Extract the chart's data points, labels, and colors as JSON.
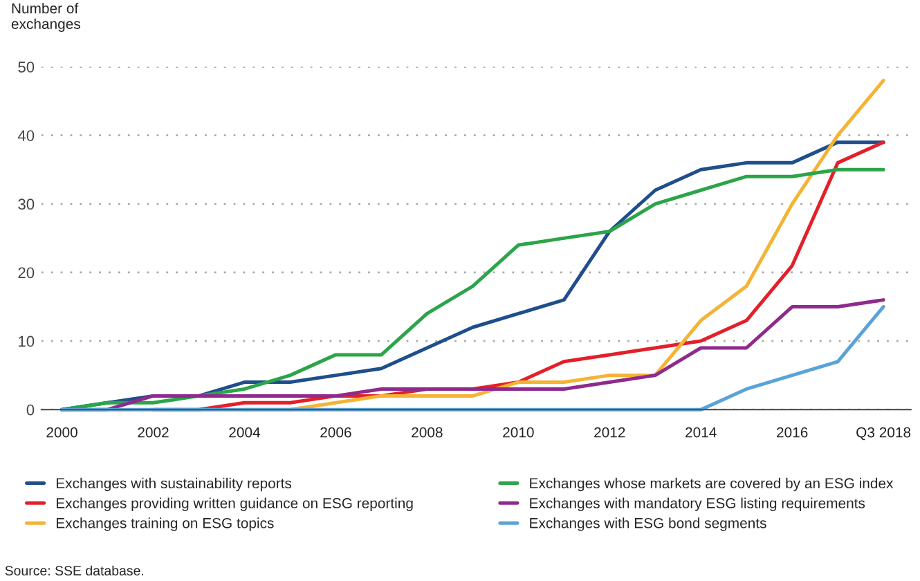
{
  "chart_data": {
    "type": "line",
    "ylabel": "Number of exchanges",
    "x": [
      2000,
      2001,
      2002,
      2003,
      2004,
      2005,
      2006,
      2007,
      2008,
      2009,
      2010,
      2011,
      2012,
      2013,
      2014,
      2015,
      2016,
      2017,
      2018
    ],
    "series": [
      {
        "name": "Exchanges with sustainability reports",
        "color": "#1f4e8c",
        "values": [
          0,
          1,
          2,
          2,
          4,
          4,
          5,
          6,
          9,
          12,
          14,
          16,
          26,
          32,
          35,
          36,
          36,
          39,
          39
        ]
      },
      {
        "name": "Exchanges providing written guidance on ESG reporting",
        "color": "#e3202a",
        "values": [
          null,
          null,
          0,
          0,
          1,
          1,
          2,
          2,
          3,
          3,
          4,
          7,
          8,
          9,
          10,
          13,
          21,
          36,
          39
        ]
      },
      {
        "name": "Exchanges training on ESG topics",
        "color": "#f5b335",
        "values": [
          null,
          null,
          null,
          null,
          0,
          0,
          1,
          2,
          2,
          2,
          4,
          4,
          5,
          5,
          13,
          18,
          30,
          40,
          48
        ]
      },
      {
        "name": "Exchanges whose markets are covered by an ESG index",
        "color": "#2ca44a",
        "values": [
          0,
          1,
          1,
          2,
          3,
          5,
          8,
          8,
          14,
          18,
          24,
          25,
          26,
          30,
          32,
          34,
          34,
          35,
          35
        ]
      },
      {
        "name": "Exchanges with mandatory ESG listing requirements",
        "color": "#8e2a8e",
        "values": [
          0,
          0,
          2,
          2,
          2,
          2,
          2,
          3,
          3,
          3,
          3,
          3,
          4,
          5,
          9,
          9,
          15,
          15,
          16
        ]
      },
      {
        "name": "Exchanges with ESG bond segments",
        "color": "#5aa3d9",
        "values": [
          0,
          0,
          0,
          0,
          0,
          0,
          0,
          0,
          0,
          0,
          0,
          0,
          0,
          0,
          0,
          3,
          5,
          7,
          15
        ]
      }
    ],
    "xlim": [
      1999.55,
      2018.6
    ],
    "xticks": [
      {
        "value": 2000,
        "label": "2000"
      },
      {
        "value": 2002,
        "label": "2002"
      },
      {
        "value": 2004,
        "label": "2004"
      },
      {
        "value": 2006,
        "label": "2006"
      },
      {
        "value": 2008,
        "label": "2008"
      },
      {
        "value": 2010,
        "label": "2010"
      },
      {
        "value": 2012,
        "label": "2012"
      },
      {
        "value": 2014,
        "label": "2014"
      },
      {
        "value": 2016,
        "label": "2016"
      },
      {
        "value": 2018,
        "label": "Q3 2018"
      }
    ],
    "ylim": [
      0,
      50
    ],
    "yticks": [
      0,
      10,
      20,
      30,
      40,
      50
    ],
    "grid": "y",
    "legend": "bottom",
    "marker": "none",
    "line_style": "solid",
    "annotations": [
      "Source: SSE database."
    ]
  }
}
